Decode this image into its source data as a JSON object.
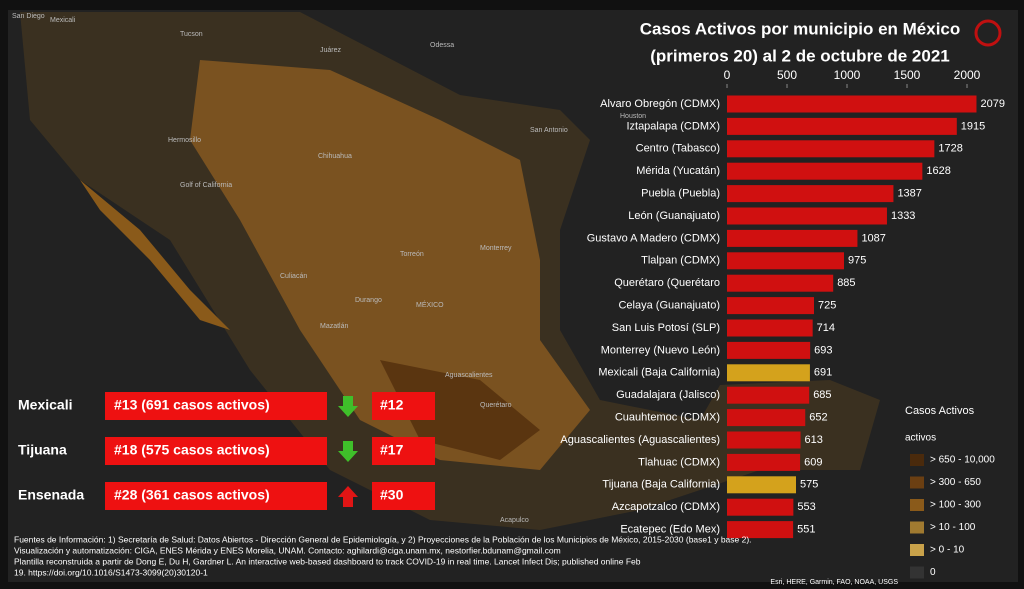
{
  "chart_data": {
    "type": "bar",
    "orientation": "horizontal",
    "title": [
      "Casos Activos por municipio en México",
      "(primeros 20) al 2 de octubre de 2021"
    ],
    "categories": [
      "Alvaro Obregón (CDMX)",
      "Iztapalapa (CDMX)",
      "Centro (Tabasco)",
      "Mérida (Yucatán)",
      "Puebla (Puebla)",
      "León (Guanajuato)",
      "Gustavo A Madero (CDMX)",
      "Tlalpan (CDMX)",
      "Querétaro (Querétaro",
      "Celaya (Guanajuato)",
      "San Luis Potosí (SLP)",
      "Monterrey (Nuevo León)",
      "Mexicali (Baja California)",
      "Guadalajara (Jalisco)",
      "Cuauhtemoc (CDMX)",
      "Aguascalientes (Aguascalientes)",
      "Tlahuac (CDMX)",
      "Tijuana (Baja California)",
      "Azcapotzalco (CDMX)",
      "Ecatepec (Edo Mex)"
    ],
    "values": [
      2079,
      1915,
      1728,
      1628,
      1387,
      1333,
      1087,
      975,
      885,
      725,
      714,
      693,
      691,
      685,
      652,
      613,
      609,
      575,
      553,
      551
    ],
    "colors": [
      "#d01010",
      "#d01010",
      "#d01010",
      "#d01010",
      "#d01010",
      "#d01010",
      "#d01010",
      "#d01010",
      "#d01010",
      "#d01010",
      "#d01010",
      "#d01010",
      "#d4a21c",
      "#d01010",
      "#d01010",
      "#d01010",
      "#d01010",
      "#d4a21c",
      "#d01010",
      "#d01010"
    ],
    "xlim": [
      0,
      2100
    ],
    "xticks": [
      0,
      500,
      1000,
      1500,
      2000
    ]
  },
  "rankings": [
    {
      "city": "Mexicali",
      "current": "#13 (691 casos activos)",
      "new": "#12",
      "trend": "down",
      "arrow_color": "#3fbf2a"
    },
    {
      "city": "Tijuana",
      "current": "#18 (575 casos activos)",
      "new": "#17",
      "trend": "down",
      "arrow_color": "#3fbf2a"
    },
    {
      "city": "Ensenada",
      "current": "#28 (361 casos activos)",
      "new": "#30",
      "trend": "up",
      "arrow_color": "#e01515"
    }
  ],
  "legend": {
    "title": "Casos Activos",
    "subtitle": "activos",
    "items": [
      {
        "label": "> 650 - 10,000",
        "color": "#4a2a0c"
      },
      {
        "label": "> 300 - 650",
        "color": "#6b3f12"
      },
      {
        "label": "> 100 - 300",
        "color": "#8a5a1a"
      },
      {
        "label": "> 10 - 100",
        "color": "#a07a30"
      },
      {
        "label": "> 0 - 10",
        "color": "#c9a24a"
      },
      {
        "label": "0",
        "color": "#333333"
      }
    ]
  },
  "map_labels": [
    "San Diego",
    "Mexicali",
    "Tucson",
    "Juárez",
    "Odessa",
    "Hermosillo",
    "Chihuahua",
    "Torreón",
    "Monterrey",
    "Culiacán",
    "Durango",
    "Mazatlán",
    "MÉXICO",
    "Houston",
    "San Antonio",
    "Aguascalientes",
    "Querétaro",
    "Acapulco",
    "Golf of California"
  ],
  "footnote": [
    "Fuentes de Información: 1) Secretaría de Salud: Datos Abiertos - Dirección General de Epidemiología, y 2) Proyecciones de la Población de los Municipios de México, 2015-2030 (base1 y base 2).",
    "Visualización y automatización: CIGA, ENES Mérida y ENES Morelia, UNAM. Contacto: aghilardi@ciga.unam.mx, nestorfier.bdunam@gmail.com",
    "Plantilla reconstruida a partir de Dong E, Du H, Gardner L. An interactive web-based dashboard to track COVID-19 in real time. Lancet Infect Dis; published online Feb",
    "19. https://doi.org/10.1016/S1473-3099(20)30120-1"
  ],
  "attribution": "Esri, HERE, Garmin, FAO, NOAA, USGS"
}
